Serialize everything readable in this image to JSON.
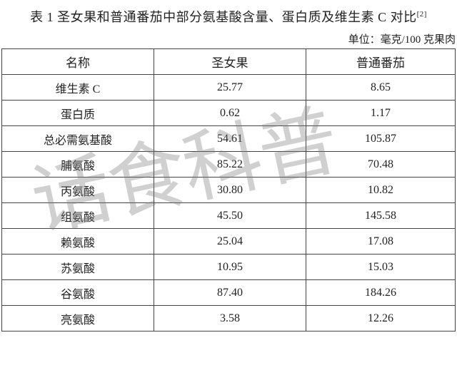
{
  "title": "表 1  圣女果和普通番茄中部分氨基酸含量、蛋白质及维生素 C 对比",
  "title_ref": "[2]",
  "unit": "单位：毫克/100 克果肉",
  "table": {
    "headers": [
      "名称",
      "圣女果",
      "普通番茄"
    ],
    "rows": [
      [
        "维生素 C",
        "25.77",
        "8.65"
      ],
      [
        "蛋白质",
        "0.62",
        "1.17"
      ],
      [
        "总必需氨基酸",
        "54.61",
        "105.87"
      ],
      [
        "脯氨酸",
        "85.22",
        "70.48"
      ],
      [
        "丙氨酸",
        "30.80",
        "10.82"
      ],
      [
        "组氨酸",
        "45.50",
        "145.58"
      ],
      [
        "赖氨酸",
        "25.04",
        "17.08"
      ],
      [
        "苏氨酸",
        "10.95",
        "15.03"
      ],
      [
        "谷氨酸",
        "87.40",
        "184.26"
      ],
      [
        "亮氨酸",
        "3.58",
        "12.26"
      ]
    ]
  },
  "watermark": "话食科普"
}
